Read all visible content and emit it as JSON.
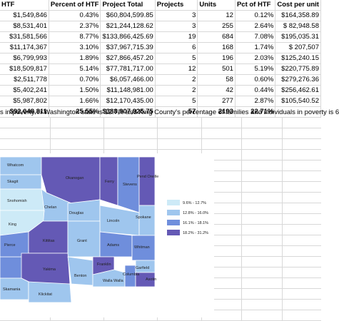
{
  "table": {
    "headers": [
      "HTF",
      "Percent of HTF",
      "Project Total",
      "Projects",
      "Units",
      "Pct of HTF",
      "Cost per unit"
    ],
    "rows": [
      [
        "$1,549,846",
        "0.43%",
        "$60,804,599.85",
        "3",
        "12",
        "0.12%",
        "$164,358.89"
      ],
      [
        "$8,531,401",
        "2.37%",
        "$21,244,128.62",
        "3",
        "255",
        "2.64%",
        "$  82,948.58"
      ],
      [
        "$31,581,566",
        "8.77%",
        "$133,866,425.69",
        "19",
        "684",
        "7.08%",
        "$195,035.31"
      ],
      [
        "$11,174,367",
        "3.10%",
        "$37,967,715.39",
        "6",
        "168",
        "1.74%",
        "$    207,507"
      ],
      [
        "$6,799,993",
        "1.89%",
        "$27,866,457.20",
        "5",
        "196",
        "2.03%",
        "$125,240.15"
      ],
      [
        "$18,509,817",
        "5.14%",
        "$77,781,717.00",
        "12",
        "501",
        "5.19%",
        "$220,775.89"
      ],
      [
        "$2,511,778",
        "0.70%",
        "$6,057,466.00",
        "2",
        "58",
        "0.60%",
        "$279,276.36"
      ],
      [
        "$5,402,241",
        "1.50%",
        "$11,148,981.00",
        "2",
        "42",
        "0.44%",
        "$256,462.61"
      ],
      [
        "$5,987,802",
        "1.66%",
        "$12,170,435.00",
        "5",
        "277",
        "2.87%",
        "$105,540.52"
      ]
    ],
    "total": [
      "$92,048,811",
      "25.55%",
      "$388,907,925.75",
      "57",
      "2193",
      "22.71%"
    ]
  },
  "note": "s in poverty in Washington state is 12.7% and King County's percentage of families and individuals in poverty is 6",
  "map": {
    "counties": [
      "Whatcom",
      "Skagit",
      "Okanogan",
      "Ferry",
      "Stevens",
      "Pend Oreille",
      "Snohomish",
      "Chelan",
      "Douglas",
      "Lincoln",
      "Spokane",
      "King",
      "Pierce",
      "Kittitas",
      "Grant",
      "Adams",
      "Whitman",
      "Yakima",
      "Benton",
      "Franklin",
      "Walla Walla",
      "Columbia",
      "Garfield",
      "Asotin",
      "Skamania",
      "Klickitat"
    ],
    "legend": [
      "9.6% - 12.7%",
      "12.8% - 16.0%",
      "16.1% - 18.1%",
      "18.2% - 31.2%"
    ]
  }
}
